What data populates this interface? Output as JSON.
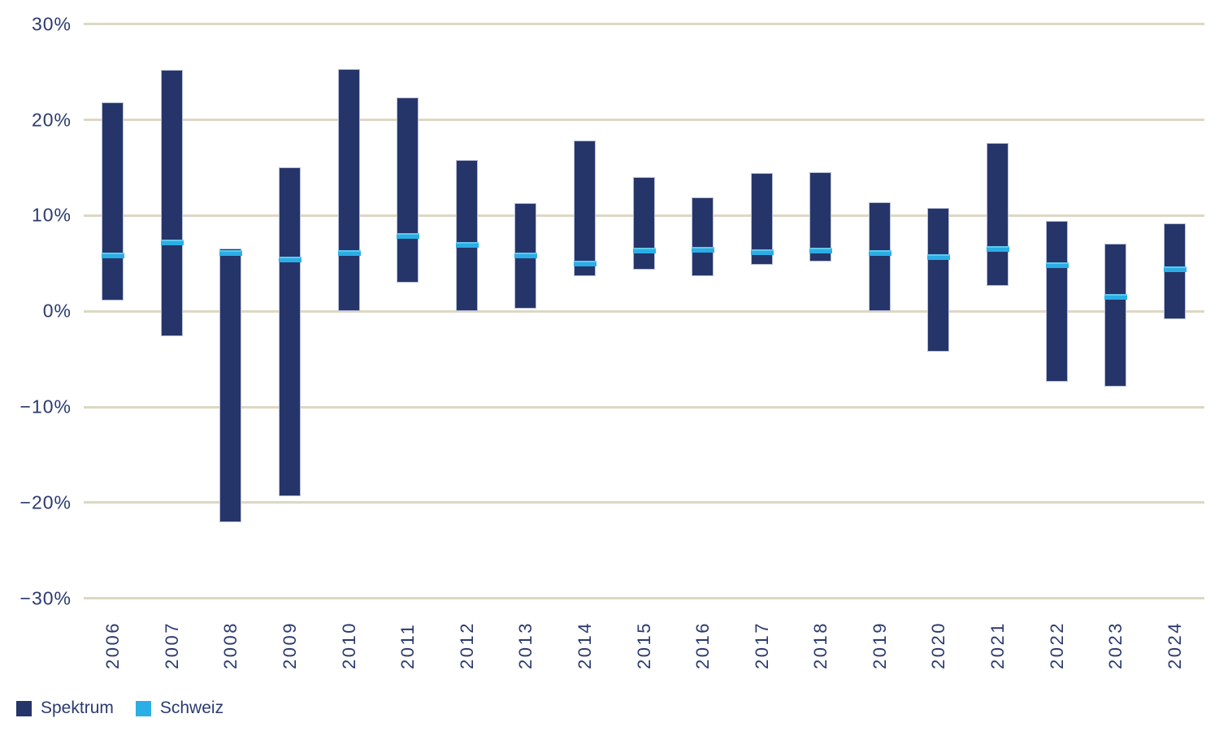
{
  "chart_data": {
    "type": "bar",
    "subtype": "floating-range-bars-with-tick-markers",
    "title": "",
    "xlabel": "",
    "ylabel": "",
    "ylim": [
      -30,
      30
    ],
    "grid": "horizontal",
    "gridline_color": "#ddd7c4",
    "axis_text_color": "#2b3a6e",
    "legend_position": "bottom-left",
    "yticks": [
      {
        "value": 30,
        "label": "30%"
      },
      {
        "value": 20,
        "label": "20%"
      },
      {
        "value": 10,
        "label": "10%"
      },
      {
        "value": 0,
        "label": "0%"
      },
      {
        "value": -10,
        "label": "−10%"
      },
      {
        "value": -20,
        "label": "−20%"
      },
      {
        "value": -30,
        "label": "−30%"
      }
    ],
    "categories": [
      "2006",
      "2007",
      "2008",
      "2009",
      "2010",
      "2011",
      "2012",
      "2013",
      "2014",
      "2015",
      "2016",
      "2017",
      "2018",
      "2019",
      "2020",
      "2021",
      "2022",
      "2023",
      "2024"
    ],
    "series": [
      {
        "name": "Spektrum",
        "style": "range-bar",
        "color": "#263569",
        "values_pct_low_high": [
          [
            1.2,
            21.7
          ],
          [
            -2.6,
            25.1
          ],
          [
            -22.0,
            6.4
          ],
          [
            -19.3,
            14.9
          ],
          [
            0.1,
            25.2
          ],
          [
            3.0,
            22.2
          ],
          [
            0.1,
            15.7
          ],
          [
            0.3,
            11.2
          ],
          [
            3.7,
            17.7
          ],
          [
            4.4,
            13.9
          ],
          [
            3.7,
            11.8
          ],
          [
            4.9,
            14.3
          ],
          [
            5.2,
            14.4
          ],
          [
            0.1,
            11.3
          ],
          [
            -4.2,
            10.7
          ],
          [
            2.7,
            17.5
          ],
          [
            -7.3,
            9.3
          ],
          [
            -7.8,
            6.9
          ],
          [
            -0.8,
            9.1
          ]
        ]
      },
      {
        "name": "Schweiz",
        "style": "horizontal-tick-marker",
        "color": "#2aaee5",
        "values_pct": [
          5.8,
          7.2,
          6.1,
          5.4,
          6.1,
          7.9,
          6.9,
          5.8,
          5.0,
          6.3,
          6.4,
          6.2,
          6.3,
          6.1,
          5.7,
          6.5,
          4.8,
          1.5,
          4.4
        ]
      }
    ]
  },
  "legend": {
    "items": [
      {
        "label": "Spektrum",
        "color": "#263569"
      },
      {
        "label": "Schweiz",
        "color": "#2aaee5"
      }
    ]
  }
}
